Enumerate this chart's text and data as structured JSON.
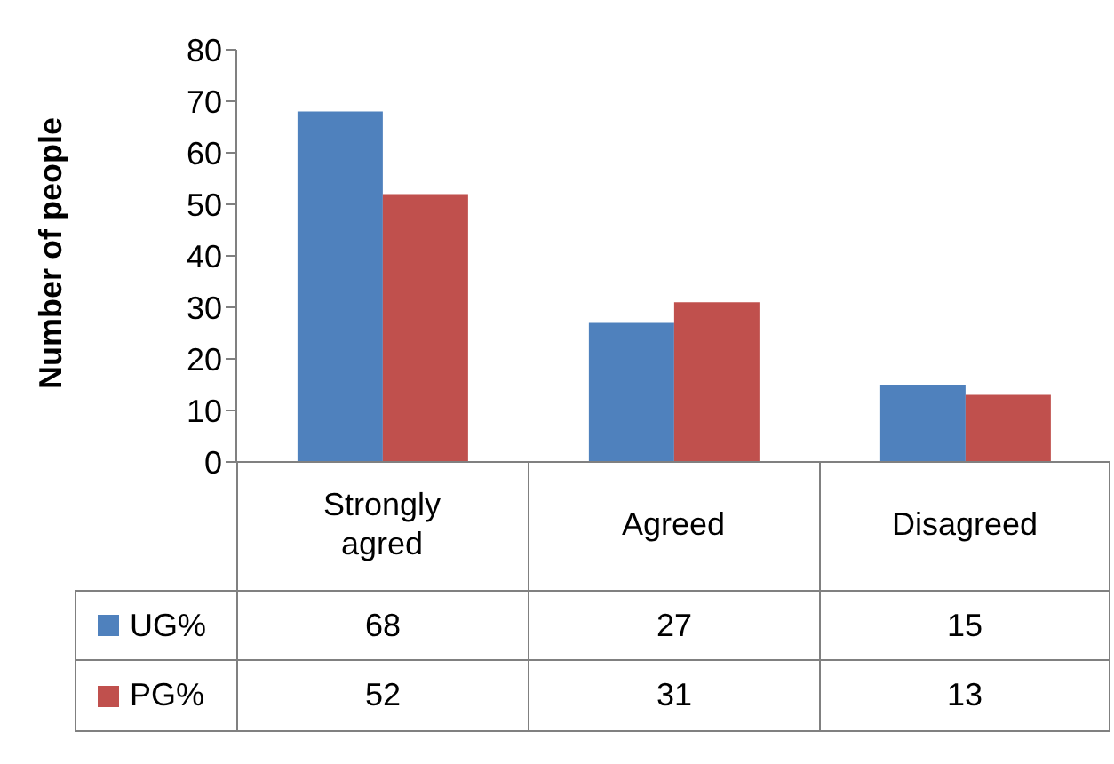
{
  "chart_data": {
    "type": "bar",
    "ylabel": "Number of people",
    "categories": [
      "Strongly agred",
      "Agreed",
      "Disagreed"
    ],
    "series": [
      {
        "name": "UG%",
        "color": "#4f81bd",
        "values": [
          68,
          27,
          15
        ]
      },
      {
        "name": "PG%",
        "color": "#c0504d",
        "values": [
          52,
          31,
          13
        ]
      }
    ],
    "ylim": [
      0,
      80
    ],
    "yticks": [
      0,
      10,
      20,
      30,
      40,
      50,
      60,
      70,
      80
    ],
    "data_labels": true,
    "legend": "bottom",
    "grid": false
  }
}
